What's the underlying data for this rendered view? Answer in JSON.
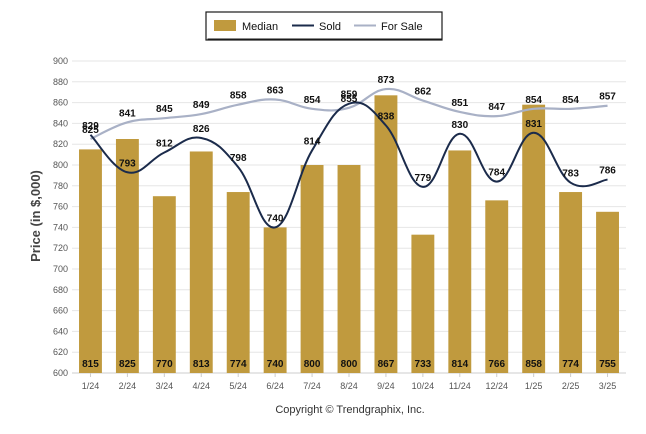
{
  "chart_data": {
    "type": "bar",
    "ylabel": "Price (in $,000)",
    "ylim": [
      600,
      900
    ],
    "yticks": [
      600,
      620,
      640,
      660,
      680,
      700,
      720,
      740,
      760,
      780,
      800,
      820,
      840,
      860,
      880,
      900
    ],
    "grid": true,
    "legend_position": "top-center",
    "categories": [
      "1/24",
      "2/24",
      "3/24",
      "4/24",
      "5/24",
      "6/24",
      "7/24",
      "8/24",
      "9/24",
      "10/24",
      "11/24",
      "12/24",
      "1/25",
      "2/25",
      "3/25"
    ],
    "series": [
      {
        "name": "Median",
        "type": "bar",
        "color": "#c09a3e",
        "values": [
          815,
          825,
          770,
          813,
          774,
          740,
          800,
          800,
          867,
          733,
          814,
          766,
          858,
          774,
          755
        ]
      },
      {
        "name": "Sold",
        "type": "line",
        "color": "#1b2b4b",
        "values": [
          829,
          793,
          812,
          826,
          798,
          740,
          814,
          859,
          838,
          779,
          830,
          784,
          831,
          783,
          786
        ]
      },
      {
        "name": "For Sale",
        "type": "line",
        "color": "#a9b1c6",
        "values": [
          825,
          841,
          845,
          849,
          858,
          863,
          854,
          855,
          873,
          862,
          851,
          847,
          854,
          854,
          857
        ]
      }
    ]
  },
  "footer": {
    "copyright": "Copyright © Trendgraphix, Inc."
  }
}
